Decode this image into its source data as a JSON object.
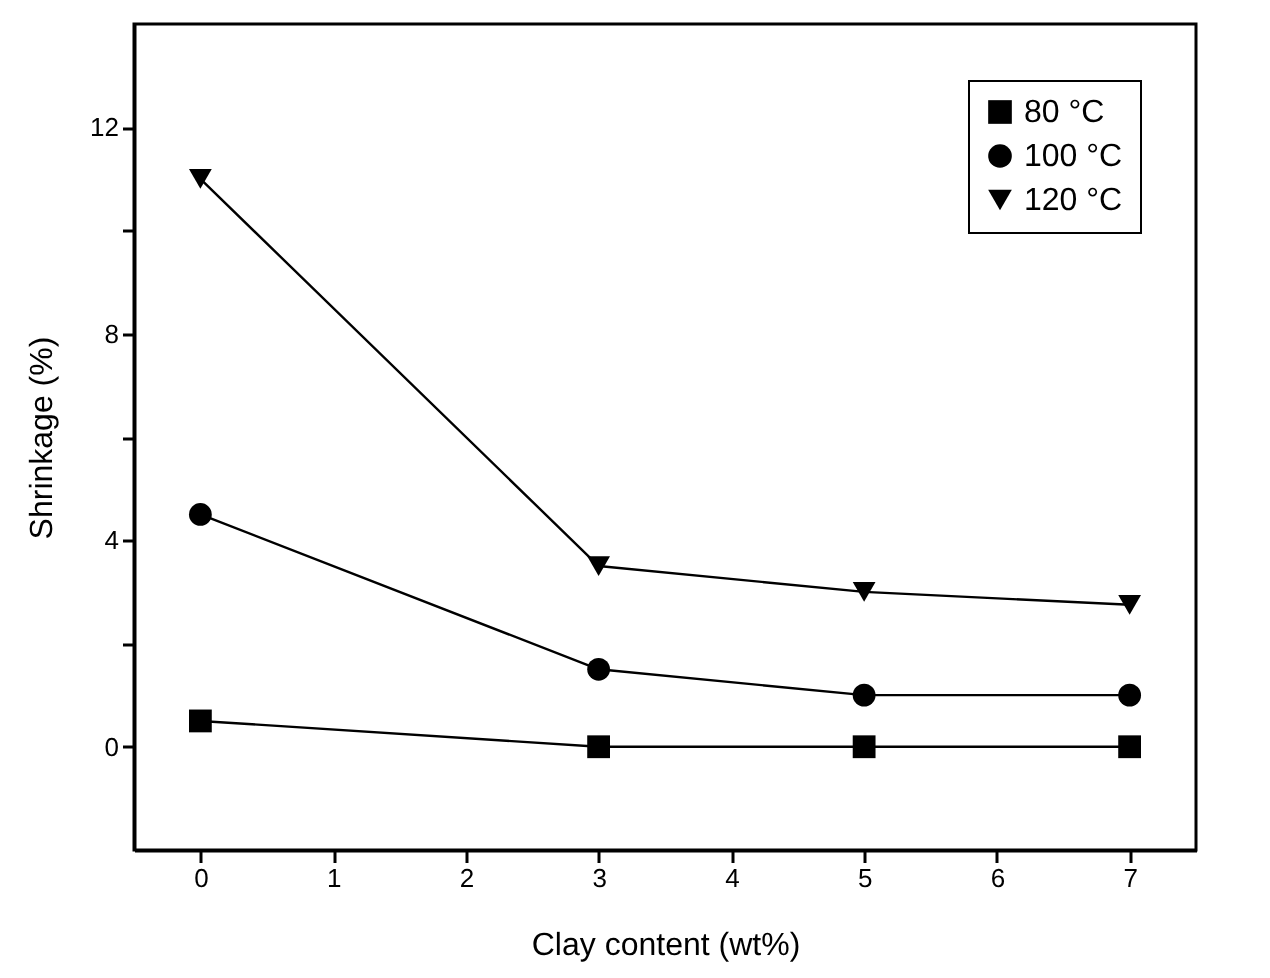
{
  "chart_data": {
    "type": "line",
    "xlabel": "Clay content (wt%)",
    "ylabel": "Shrinkage (%)",
    "x": [
      0,
      3,
      5,
      7
    ],
    "xlim": [
      -0.5,
      7.5
    ],
    "xticks": [
      0,
      1,
      2,
      3,
      4,
      5,
      6,
      7
    ],
    "ylim": [
      -2,
      14
    ],
    "yticks": [
      0,
      {
        "value": 2,
        "label": null
      },
      4,
      {
        "value": 6,
        "label": null
      },
      8,
      {
        "value": 10,
        "label": null
      },
      12
    ],
    "grid": false,
    "legend": "top right",
    "line_style": "solid",
    "series": [
      {
        "name": "80 °C",
        "color": "#000000",
        "marker": "square",
        "values": [
          0.5,
          0,
          0,
          0
        ]
      },
      {
        "name": "100 °C",
        "color": "#000000",
        "marker": "circle",
        "values": [
          4.5,
          1.5,
          1,
          1
        ]
      },
      {
        "name": "120 °C",
        "color": "#000000",
        "marker": "triangle",
        "values": [
          11,
          3.5,
          3,
          2.75
        ]
      }
    ]
  }
}
